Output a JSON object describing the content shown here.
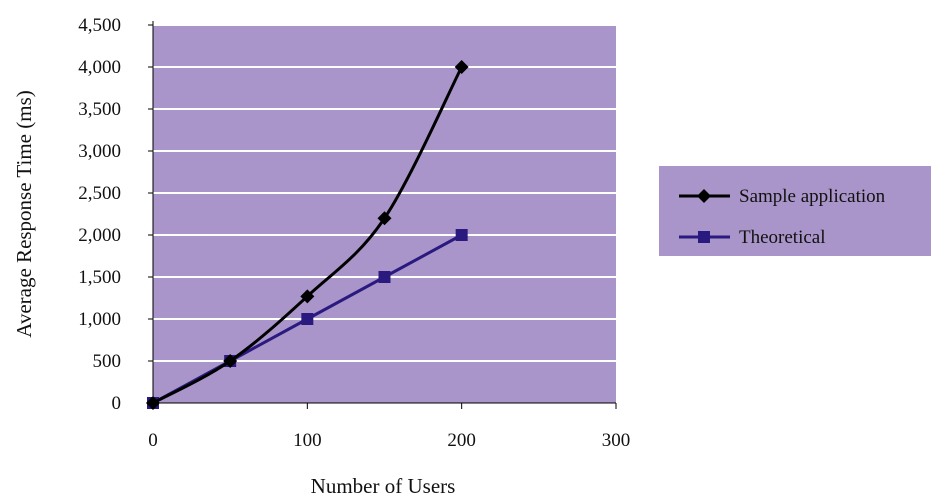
{
  "chart_data": {
    "type": "line",
    "title": "",
    "xlabel": "Number of Users",
    "ylabel": "Average Response Time (ms)",
    "xlim": [
      0,
      300
    ],
    "ylim": [
      0,
      4500
    ],
    "x_ticks": [
      0,
      100,
      200,
      300
    ],
    "x_tick_labels": [
      "0",
      "100",
      "200",
      "300"
    ],
    "y_ticks": [
      0,
      500,
      1000,
      1500,
      2000,
      2500,
      3000,
      3500,
      4000,
      4500
    ],
    "y_tick_labels": [
      "0",
      "500",
      "1,000",
      "1,500",
      "2,000",
      "2,500",
      "3,000",
      "3,500",
      "4,000",
      "4,500"
    ],
    "grid": true,
    "legend_position": "right",
    "plot_background": "#a995c9",
    "grid_color": "#ffffff",
    "series": [
      {
        "name": "Sample application",
        "color": "#000000",
        "marker": "diamond",
        "smooth": true,
        "x": [
          0,
          50,
          100,
          150,
          200
        ],
        "y": [
          0,
          500,
          1270,
          2200,
          4000
        ]
      },
      {
        "name": "Theoretical",
        "color": "#2a1a80",
        "marker": "square",
        "smooth": false,
        "x": [
          0,
          50,
          100,
          150,
          200
        ],
        "y": [
          0,
          500,
          1000,
          1500,
          2000
        ]
      }
    ]
  }
}
